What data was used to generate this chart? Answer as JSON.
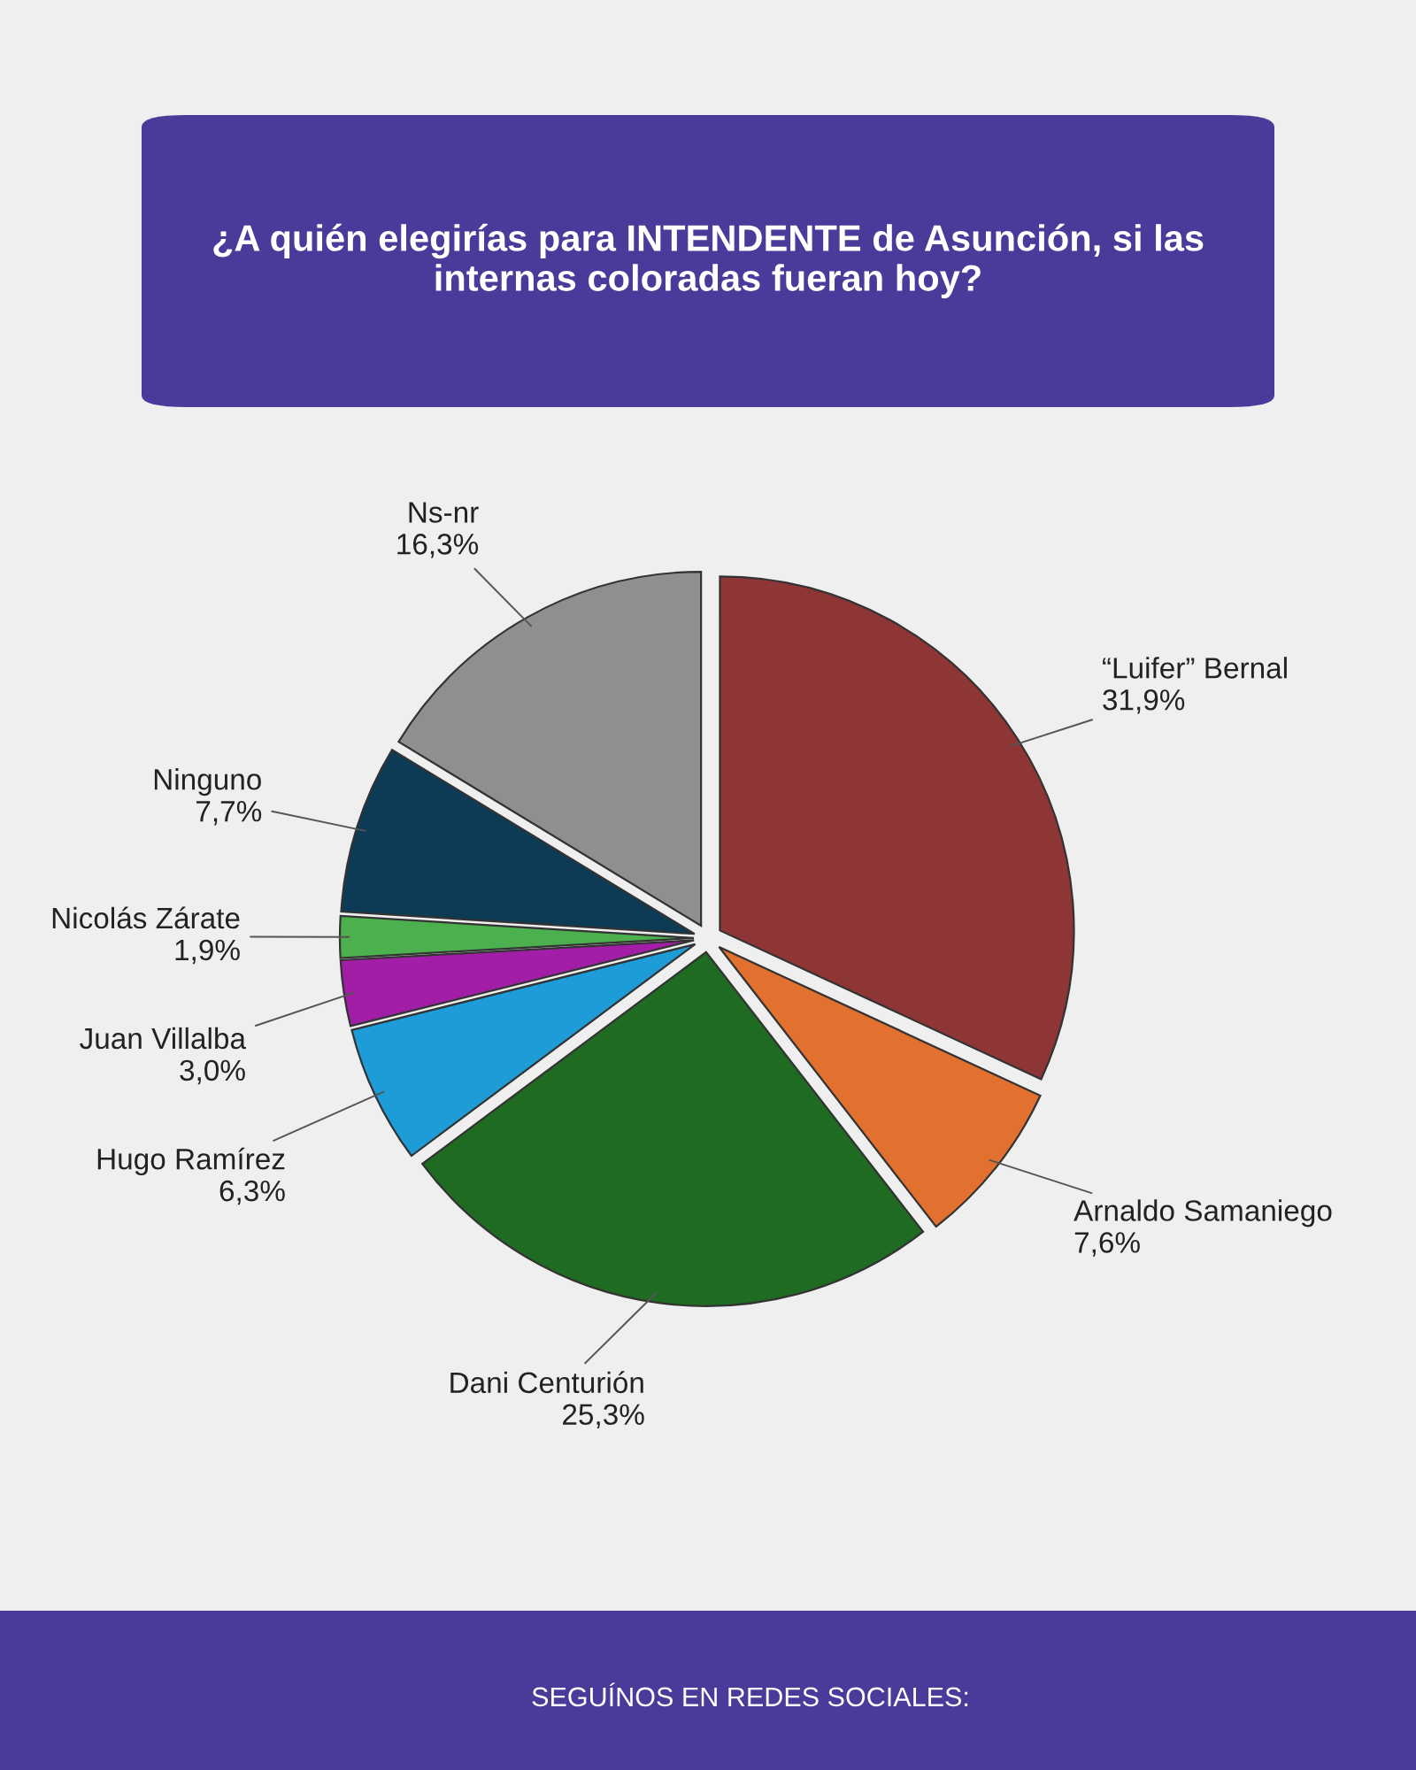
{
  "chart_data": {
    "type": "pie",
    "title": "¿A quién elegirías para INTENDENTE de Asunción, si las internas coloradas fueran hoy?",
    "categories": [
      "“Luifer” Bernal",
      "Arnaldo Samaniego",
      "Dani Centurión",
      "Hugo Ramírez",
      "Juan Villalba",
      "Nicolás Zárate",
      "Ninguno",
      "Ns-nr"
    ],
    "values": [
      31.9,
      7.6,
      25.3,
      6.3,
      3.0,
      1.9,
      7.7,
      16.3
    ],
    "value_labels": [
      "31,9%",
      "7,6%",
      "25,3%",
      "6,3%",
      "3,0%",
      "1,9%",
      "7,7%",
      "16,3%"
    ],
    "colors": [
      "#8e3535",
      "#e2702f",
      "#1f6b22",
      "#1e9cd8",
      "#a21ea6",
      "#4cb04f",
      "#0d3a55",
      "#8f8f8f"
    ],
    "annotations": [
      "SEGUÍNOS EN REDES SOCIALES:"
    ],
    "legend": false
  }
}
